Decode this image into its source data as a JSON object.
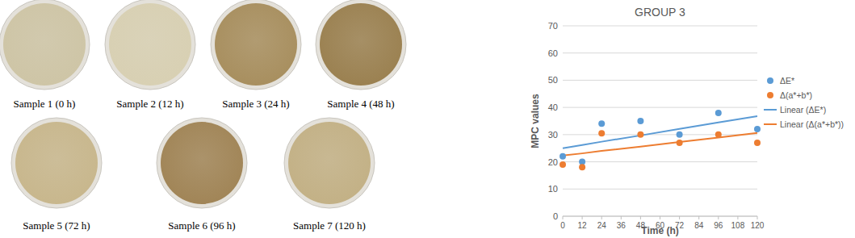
{
  "samples": [
    {
      "label": "Sample 1 (0 h)",
      "color": "#cec5a6"
    },
    {
      "label": "Sample 2 (12 h)",
      "color": "#d8d0b3"
    },
    {
      "label": "Sample 3 (24 h)",
      "color": "#a88f5f"
    },
    {
      "label": "Sample 4 (48 h)",
      "color": "#9b8151"
    },
    {
      "label": "Sample 5 (72 h)",
      "color": "#c8b78d"
    },
    {
      "label": "Sample 6 (96 h)",
      "color": "#a18557"
    },
    {
      "label": "Sample 7 (120 h)",
      "color": "#c3b186"
    }
  ],
  "chart_data": {
    "type": "scatter",
    "title": "GROUP 3",
    "x_label": "Time (h)",
    "y_label": "MPC values",
    "x": [
      0,
      12,
      24,
      48,
      72,
      96,
      120
    ],
    "series": [
      {
        "name": "ΔE*",
        "color": "#5b9bd5",
        "type": "scatter",
        "marker": "circle",
        "values": [
          22,
          20,
          34,
          35,
          30,
          38,
          32
        ]
      },
      {
        "name": "Δ(a*+b*)",
        "color": "#ed7d31",
        "type": "scatter",
        "marker": "circle",
        "values": [
          19,
          18,
          30.5,
          30,
          27,
          30,
          27
        ]
      },
      {
        "name": "Linear (ΔE*)",
        "color": "#5b9bd5",
        "type": "line",
        "line_style": "solid",
        "values": [
          25,
          26.2,
          27.4,
          29.7,
          32.1,
          34.5,
          36.8
        ]
      },
      {
        "name": "Linear (Δ(a*+b*))",
        "color": "#ed7d31",
        "type": "line",
        "line_style": "solid",
        "values": [
          22.3,
          23.1,
          24.0,
          25.6,
          27.3,
          28.9,
          30.6
        ]
      }
    ],
    "xlim": [
      0,
      120
    ],
    "xticks": [
      0,
      12,
      24,
      36,
      48,
      60,
      72,
      84,
      96,
      108,
      120
    ],
    "ylim": [
      0,
      70
    ],
    "yticks": [
      0,
      10,
      20,
      30,
      40,
      50,
      60,
      70
    ],
    "grid": true,
    "legend": "right"
  }
}
